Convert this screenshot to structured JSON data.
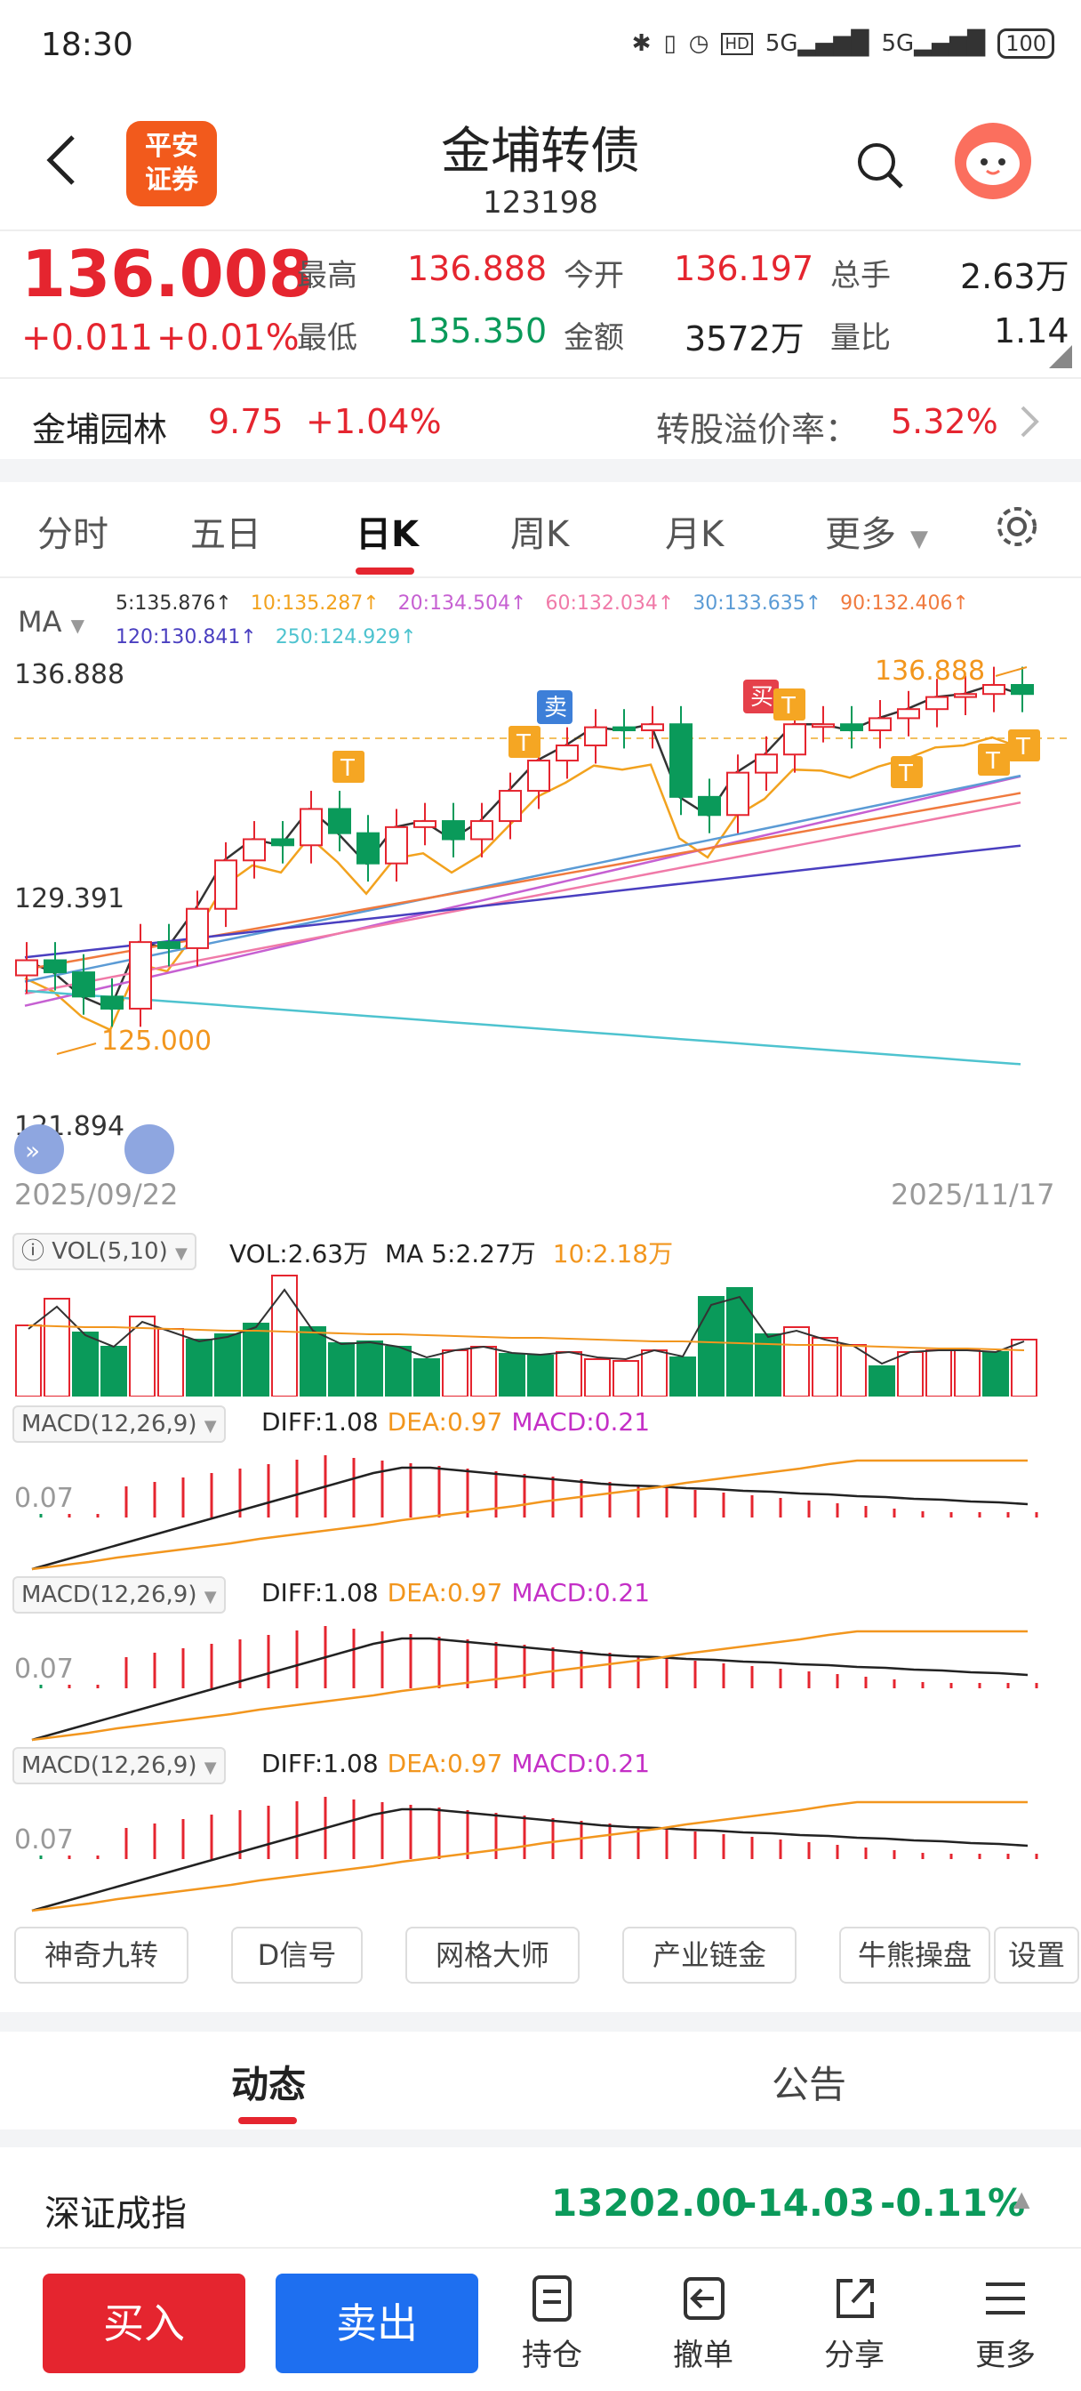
{
  "status_bar": {
    "time": "18:30",
    "icons": [
      "bluetooth-icon",
      "vibrate-icon",
      "alarm-icon",
      "hd-icon",
      "signal-5g-icon",
      "signal-5g-icon"
    ],
    "battery": "100"
  },
  "header": {
    "logo_text_line1": "平安",
    "logo_text_line2": "证券",
    "title": "金埔转债",
    "code": "123198"
  },
  "quote": {
    "price": "136.008",
    "change": "+0.011",
    "change_pct": "+0.01%",
    "high_label": "最高",
    "high": "136.888",
    "open_label": "今开",
    "open": "136.197",
    "total_hands_label": "总手",
    "total_hands": "2.63万",
    "low_label": "最低",
    "low": "135.350",
    "amount_label": "金额",
    "amount": "3572万",
    "vol_ratio_label": "量比",
    "vol_ratio": "1.14"
  },
  "related_stock": {
    "name": "金埔园林",
    "price": "9.75",
    "change_pct": "+1.04%",
    "premium_label": "转股溢价率：",
    "premium": "5.32%"
  },
  "tabs": [
    "分时",
    "五日",
    "日K",
    "周K",
    "月K",
    "更多"
  ],
  "active_tab": "日K",
  "kline": {
    "ma_label": "MA",
    "ma_values": [
      {
        "text": "5:135.876↑",
        "color": "#333333"
      },
      {
        "text": "10:135.287↑",
        "color": "#f2a21e"
      },
      {
        "text": "20:134.504↑",
        "color": "#c660d2"
      },
      {
        "text": "60:132.034↑",
        "color": "#f07aa8"
      },
      {
        "text": "30:133.635↑",
        "color": "#5b9bd5"
      },
      {
        "text": "90:132.406↑",
        "color": "#f07a3e"
      },
      {
        "text": "120:130.841↑",
        "color": "#4a3fc0"
      },
      {
        "text": "250:124.929↑",
        "color": "#4ec3cf"
      }
    ],
    "y_top": "136.888",
    "y_mid": "129.391",
    "y_bottom": "121.894",
    "high_marker": "136.888",
    "low_marker": "125.000",
    "date_start": "2025/09/22",
    "date_end": "2025/11/17",
    "sell_tag": "卖",
    "buy_tag": "买",
    "t_tag": "T"
  },
  "volume": {
    "label": "VOL(5,10)",
    "vol": "VOL:2.63万",
    "ma5": "MA 5:2.27万",
    "ma10": "10:2.18万"
  },
  "macd": {
    "label": "MACD(12,26,9)",
    "diff": "DIFF:1.08",
    "dea": "DEA:0.97",
    "macd": "MACD:0.21",
    "axis": "0.07"
  },
  "tools": [
    "神奇九转",
    "D信号",
    "网格大师",
    "产业链金",
    "牛熊操盘",
    "设置"
  ],
  "news_tabs": [
    "动态",
    "公告"
  ],
  "index": {
    "name": "深证成指",
    "value": "13202.00",
    "change": "-14.03",
    "change_pct": "-0.11%"
  },
  "bottom_bar": {
    "buy": "买入",
    "sell": "卖出",
    "items": [
      "持仓",
      "撤单",
      "分享",
      "更多"
    ]
  }
}
